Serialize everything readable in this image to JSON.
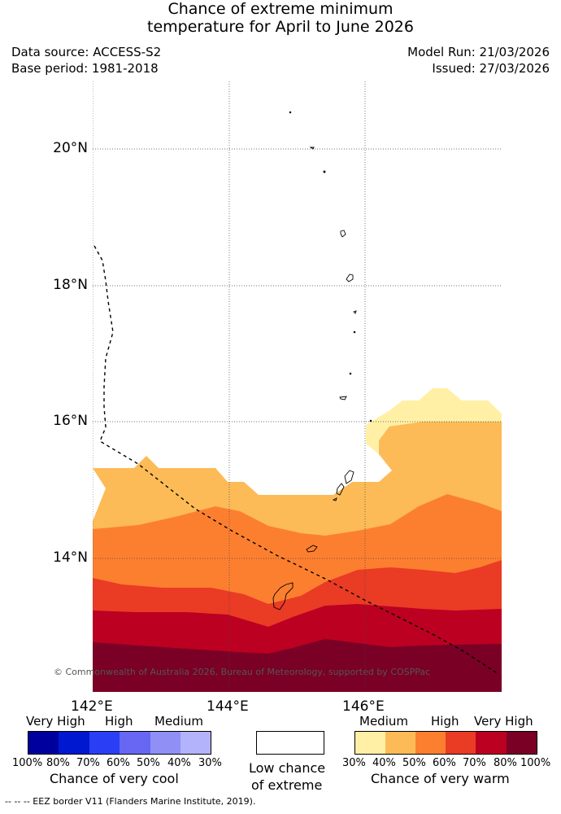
{
  "title": {
    "line1": "Chance of extreme minimum",
    "line2": "temperature for April to June 2026"
  },
  "meta": {
    "data_source": "Data source: ACCESS-S2",
    "base_period": "Base period: 1981-2018",
    "model_run": "Model Run: 21/03/2026",
    "issued": "Issued: 27/03/2026"
  },
  "map": {
    "lat_labels": [
      "20°N",
      "18°N",
      "16°N",
      "14°N"
    ],
    "lon_labels": [
      "142°E",
      "144°E",
      "146°E"
    ],
    "copyright": "© Commonwealth of Australia 2026, Bureau of Meteorology, supported by COSPPac",
    "eez_note": "--  --  -- EEZ border V11 (Flanders Marine Institute, 2019)."
  },
  "legend": {
    "cool": {
      "very_high": "Very High",
      "high": "High",
      "medium": "Medium",
      "percent_labels": [
        "100%",
        "80%",
        "70%",
        "60%",
        "50%",
        "40%",
        "30%"
      ],
      "caption": "Chance of very cool",
      "colors": [
        "#00009e",
        "#0018d0",
        "#2a3ff5",
        "#6767f4",
        "#8f8ff6",
        "#b3b3fb"
      ]
    },
    "neutral": {
      "caption_line1": "Low chance",
      "caption_line2": "of extreme",
      "color": "#ffffff"
    },
    "warm": {
      "very_high": "Very High",
      "high": "High",
      "medium": "Medium",
      "percent_labels": [
        "30%",
        "40%",
        "50%",
        "60%",
        "70%",
        "80%",
        "100%"
      ],
      "caption": "Chance of very warm",
      "colors": [
        "#fff0a6",
        "#fcbb57",
        "#fc7f30",
        "#ea3b25",
        "#bc0021",
        "#7a0026"
      ]
    }
  }
}
